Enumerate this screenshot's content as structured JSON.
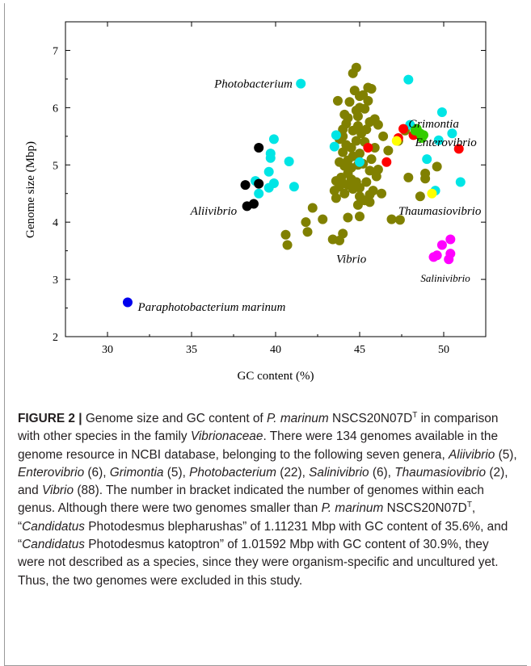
{
  "chart_data": {
    "type": "scatter",
    "title": "",
    "xlabel": "GC content (%)",
    "ylabel": "Genome size (Mbp)",
    "xlim": [
      27.5,
      52.5
    ],
    "ylim": [
      2,
      7.5
    ],
    "xticks": [
      30,
      35,
      40,
      45,
      50
    ],
    "yticks": [
      2,
      3,
      4,
      5,
      6,
      7
    ],
    "grid": false,
    "legend": "none",
    "series": [
      {
        "name": "Vibrio",
        "color": "#808000",
        "points": [
          [
            44.8,
            6.7
          ],
          [
            44.6,
            6.6
          ],
          [
            45.5,
            6.35
          ],
          [
            45.7,
            6.33
          ],
          [
            44.7,
            6.3
          ],
          [
            45.2,
            6.22
          ],
          [
            45.0,
            6.2
          ],
          [
            45.5,
            6.12
          ],
          [
            44.4,
            6.1
          ],
          [
            43.7,
            6.12
          ],
          [
            45.0,
            6.0
          ],
          [
            45.3,
            5.98
          ],
          [
            44.8,
            5.95
          ],
          [
            44.1,
            5.88
          ],
          [
            44.9,
            5.85
          ],
          [
            44.3,
            5.82
          ],
          [
            45.9,
            5.8
          ],
          [
            45.6,
            5.75
          ],
          [
            44.2,
            5.72
          ],
          [
            46.1,
            5.7
          ],
          [
            44.9,
            5.68
          ],
          [
            44.0,
            5.62
          ],
          [
            45.4,
            5.62
          ],
          [
            44.6,
            5.6
          ],
          [
            45.1,
            5.55
          ],
          [
            44.0,
            5.5
          ],
          [
            46.4,
            5.5
          ],
          [
            43.8,
            5.45
          ],
          [
            44.8,
            5.42
          ],
          [
            45.3,
            5.4
          ],
          [
            44.2,
            5.35
          ],
          [
            45.9,
            5.3
          ],
          [
            44.5,
            5.3
          ],
          [
            46.7,
            5.25
          ],
          [
            44.0,
            5.22
          ],
          [
            45.0,
            5.2
          ],
          [
            44.6,
            5.15
          ],
          [
            45.7,
            5.1
          ],
          [
            44.3,
            5.08
          ],
          [
            43.8,
            5.05
          ],
          [
            45.2,
            5.02
          ],
          [
            44.9,
            5.0
          ],
          [
            44.1,
            4.98
          ],
          [
            44.5,
            4.95
          ],
          [
            46.1,
            4.92
          ],
          [
            45.6,
            4.9
          ],
          [
            44.3,
            4.85
          ],
          [
            46.0,
            4.8
          ],
          [
            43.9,
            4.78
          ],
          [
            44.5,
            4.75
          ],
          [
            43.6,
            4.72
          ],
          [
            44.8,
            4.7
          ],
          [
            45.4,
            4.7
          ],
          [
            44.0,
            4.68
          ],
          [
            44.3,
            4.65
          ],
          [
            43.8,
            4.62
          ],
          [
            45.0,
            4.6
          ],
          [
            44.6,
            4.58
          ],
          [
            45.8,
            4.55
          ],
          [
            43.5,
            4.55
          ],
          [
            44.1,
            4.5
          ],
          [
            45.6,
            4.48
          ],
          [
            46.3,
            4.5
          ],
          [
            45.0,
            4.45
          ],
          [
            43.6,
            4.42
          ],
          [
            45.3,
            4.38
          ],
          [
            44.9,
            4.3
          ],
          [
            42.2,
            4.25
          ],
          [
            42.8,
            4.05
          ],
          [
            41.8,
            4.0
          ],
          [
            45.0,
            4.1
          ],
          [
            44.3,
            4.08
          ],
          [
            46.9,
            4.05
          ],
          [
            47.4,
            4.04
          ],
          [
            41.9,
            3.83
          ],
          [
            44.0,
            3.8
          ],
          [
            40.6,
            3.78
          ],
          [
            43.4,
            3.7
          ],
          [
            43.8,
            3.68
          ],
          [
            40.7,
            3.6
          ],
          [
            47.3,
            5.42
          ],
          [
            47.7,
            5.6
          ],
          [
            48.6,
            4.45
          ],
          [
            47.9,
            4.78
          ],
          [
            48.9,
            4.85
          ],
          [
            48.9,
            4.76
          ],
          [
            49.6,
            4.97
          ],
          [
            45.6,
            4.35
          ]
        ]
      },
      {
        "name": "Photobacterium",
        "color": "#00e5e5",
        "points": [
          [
            41.5,
            6.42
          ],
          [
            47.9,
            6.49
          ],
          [
            49.9,
            5.92
          ],
          [
            48.0,
            5.7
          ],
          [
            49.7,
            5.43
          ],
          [
            50.5,
            5.55
          ],
          [
            51.0,
            4.7
          ],
          [
            49.5,
            4.55
          ],
          [
            49.0,
            5.1
          ],
          [
            43.6,
            5.52
          ],
          [
            43.5,
            5.32
          ],
          [
            39.9,
            5.45
          ],
          [
            39.7,
            5.2
          ],
          [
            39.7,
            5.12
          ],
          [
            40.8,
            5.06
          ],
          [
            39.6,
            4.88
          ],
          [
            41.1,
            4.62
          ],
          [
            39.9,
            4.68
          ],
          [
            39.6,
            4.6
          ],
          [
            39.0,
            4.5
          ],
          [
            38.8,
            4.72
          ],
          [
            45.0,
            5.05
          ]
        ]
      },
      {
        "name": "Aliivibrio",
        "color": "#000000",
        "points": [
          [
            39.0,
            5.3
          ],
          [
            38.2,
            4.65
          ],
          [
            39.0,
            4.67
          ],
          [
            38.7,
            4.32
          ],
          [
            38.3,
            4.28
          ]
        ]
      },
      {
        "name": "Enterovibrio",
        "color": "#ff0000",
        "points": [
          [
            47.6,
            5.63
          ],
          [
            48.2,
            5.52
          ],
          [
            45.5,
            5.3
          ],
          [
            46.6,
            5.05
          ],
          [
            50.9,
            5.28
          ],
          [
            47.3,
            5.47
          ]
        ]
      },
      {
        "name": "Grimontia",
        "color": "#33cc00",
        "points": [
          [
            48.3,
            5.6
          ],
          [
            48.6,
            5.55
          ],
          [
            48.4,
            5.63
          ],
          [
            48.7,
            5.47
          ],
          [
            48.8,
            5.52
          ]
        ]
      },
      {
        "name": "Thaumasiovibrio",
        "color": "#ffff00",
        "points": [
          [
            47.2,
            5.42
          ],
          [
            49.3,
            4.5
          ]
        ]
      },
      {
        "name": "Salinivibrio",
        "color": "#ff00ff",
        "points": [
          [
            50.4,
            3.7
          ],
          [
            49.9,
            3.6
          ],
          [
            50.4,
            3.45
          ],
          [
            50.3,
            3.35
          ],
          [
            49.4,
            3.39
          ],
          [
            49.6,
            3.42
          ]
        ]
      },
      {
        "name": "Paraphotobacterium marinum",
        "color": "#0000ee",
        "points": [
          [
            31.2,
            2.6
          ]
        ]
      }
    ],
    "annotations": [
      {
        "text": "Photobacterium",
        "x": 41.0,
        "y": 6.42,
        "anchor": "end",
        "italic": true
      },
      {
        "text": "Grimontia",
        "x": 47.9,
        "y": 5.72,
        "anchor": "start",
        "italic": true
      },
      {
        "text": "Enterovibrio",
        "x": 48.3,
        "y": 5.4,
        "anchor": "start",
        "italic": true
      },
      {
        "text": "Aliivibrio",
        "x": 37.7,
        "y": 4.2,
        "anchor": "end",
        "italic": true
      },
      {
        "text": "Thaumasiovibrio",
        "x": 47.3,
        "y": 4.2,
        "anchor": "start",
        "italic": true
      },
      {
        "text": "Vibrio",
        "x": 44.5,
        "y": 3.36,
        "anchor": "middle",
        "italic": true
      },
      {
        "text": "Salinivibrio",
        "x": 50.1,
        "y": 3.03,
        "anchor": "middle",
        "italic": true,
        "small": true
      },
      {
        "text": "Paraphotobacterium marinum",
        "x": 31.8,
        "y": 2.52,
        "anchor": "start",
        "italic": true
      }
    ]
  },
  "caption": {
    "label": "FIGURE 2 |",
    "t1": " Genome size and GC content of ",
    "i1": "P. marinum",
    "t2": " NSCS20N07D",
    "sup1": "T",
    "t3": " in comparison with other species in the family ",
    "i2": "Vibrionaceae",
    "t4": ". There were 134 genomes available in the genome resource in NCBI database, belonging to the following seven genera, ",
    "i3": "Aliivibrio",
    "t5": " (5), ",
    "i4": "Enterovibrio",
    "t6": " (6), ",
    "i5": "Grimontia",
    "t7": " (5), ",
    "i6": "Photobacterium",
    "t8": " (22), ",
    "i7": "Salinivibrio",
    "t9": " (6), ",
    "i8": "Thaumasiovibrio",
    "t10": " (2), and ",
    "i9": "Vibrio",
    "t11": " (88). The number in bracket indicated the number of genomes within each genus. Although there were two genomes smaller than ",
    "i10": "P. marinum",
    "t12": " NSCS20N07D",
    "sup2": "T",
    "t13": ", “",
    "i11": "Candidatus",
    "t14": " Photodesmus blepharushas” of 1.11231 Mbp with GC content of 35.6%, and “",
    "i12": "Candidatus",
    "t15": " Photodesmus katoptron” of 1.01592 Mbp with GC content of 30.9%, they were not described as a species, since they were organism-specific and uncultured yet. Thus, the two genomes were excluded in this study."
  }
}
